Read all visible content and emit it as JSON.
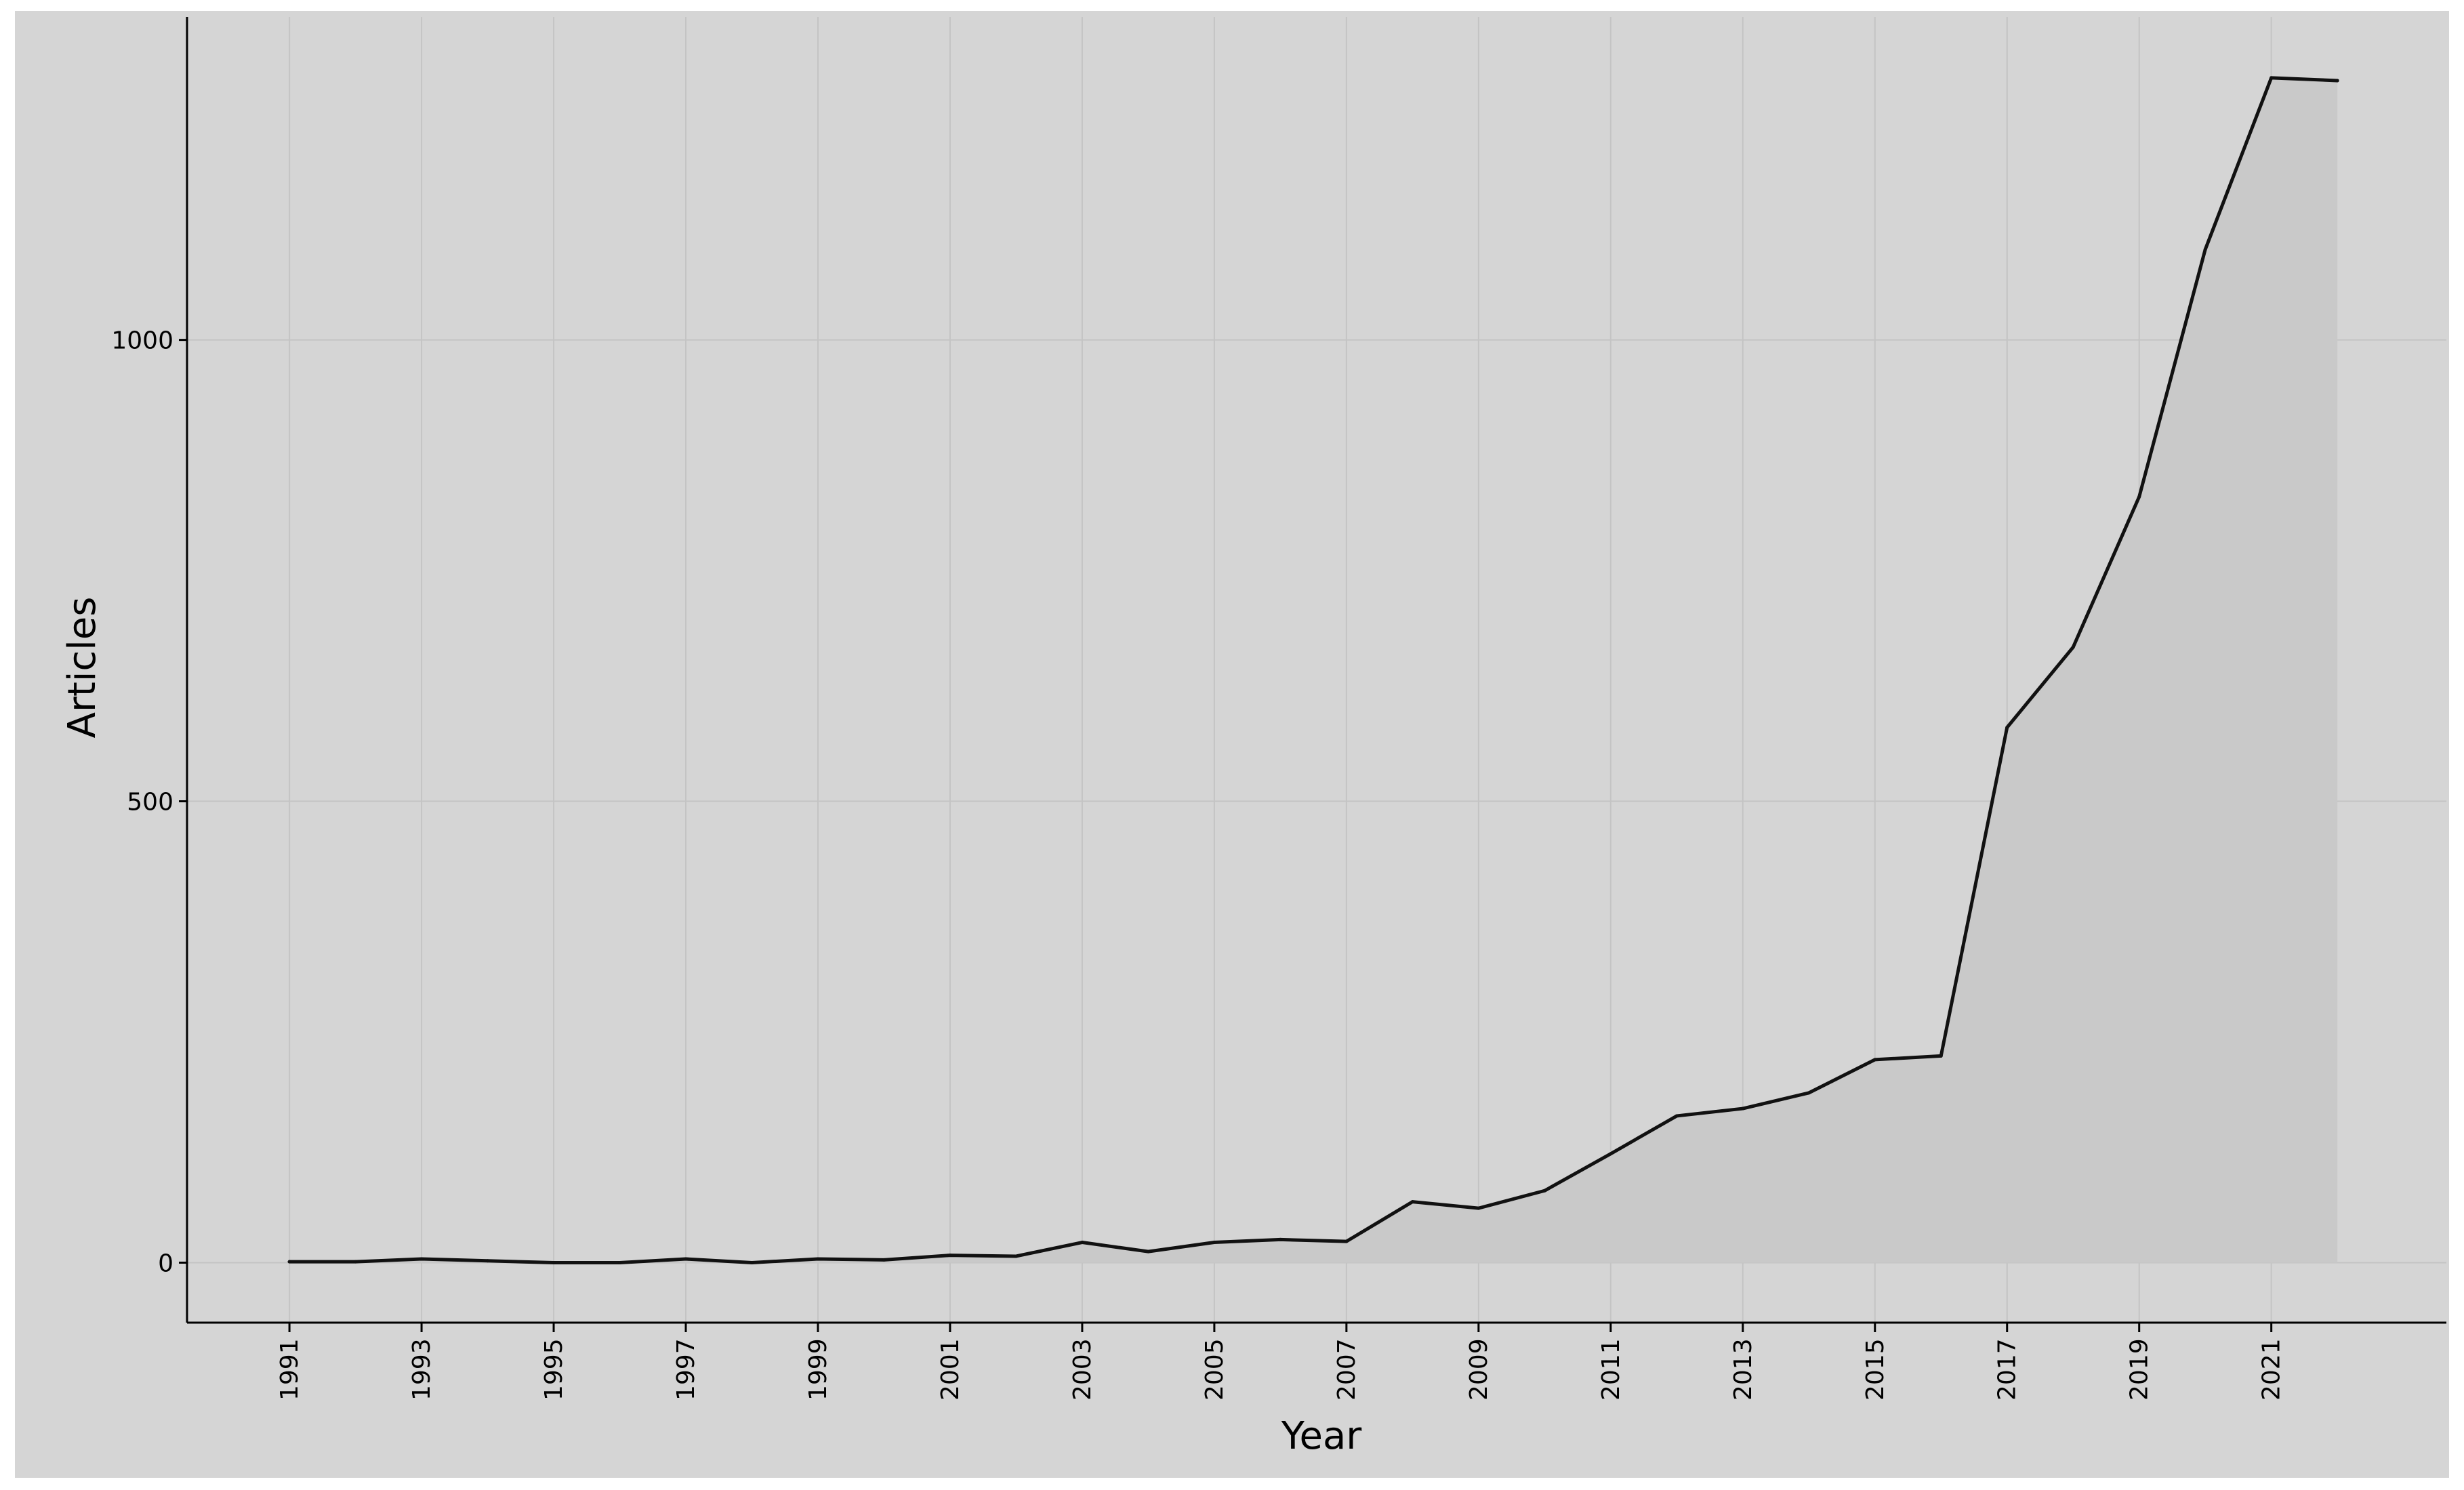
{
  "chart_data": {
    "type": "area",
    "xlabel": "Year",
    "ylabel": "Articles",
    "x_tick_labels": [
      "1991",
      "1993",
      "1995",
      "1997",
      "1999",
      "2001",
      "2003",
      "2005",
      "2007",
      "2009",
      "2011",
      "2013",
      "2015",
      "2017",
      "2019",
      "2021"
    ],
    "y_tick_labels": [
      "0",
      "500",
      "1000"
    ],
    "y_ticks": [
      0,
      500,
      1000
    ],
    "xlim": [
      1989.45,
      2023.65
    ],
    "ylim": [
      -65,
      1350
    ],
    "grid": true,
    "series": [
      {
        "x": [
          1991,
          1992,
          1993,
          1994,
          1995,
          1996,
          1997,
          1998,
          1999,
          2000,
          2001,
          2002,
          2003,
          2004,
          2005,
          2006,
          2007,
          2008,
          2009,
          2010,
          2011,
          2012,
          2013,
          2014,
          2015,
          2016,
          2017,
          2018,
          2019,
          2020,
          2021,
          2022
        ],
        "values": [
          1,
          1,
          4,
          2,
          0,
          0,
          4,
          0,
          4,
          3,
          8,
          7,
          22,
          12,
          22,
          25,
          23,
          66,
          59,
          78,
          118,
          159,
          167,
          184,
          220,
          224,
          580,
          667,
          830,
          1098,
          1284,
          1281
        ]
      }
    ],
    "colors": {
      "panel_background": "#d5d5d5",
      "gridline": "#c4c4c4",
      "line": "#111111",
      "area_fill": "#c9c9c9"
    }
  }
}
